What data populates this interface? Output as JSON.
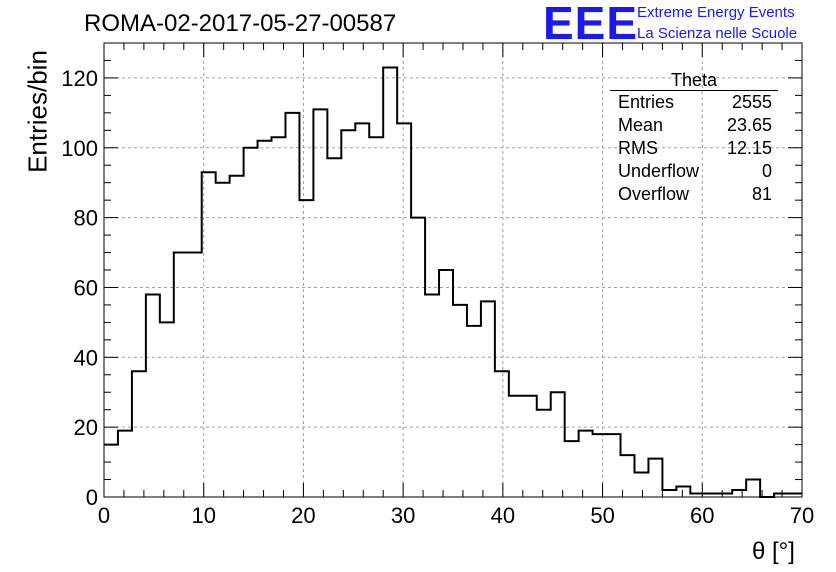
{
  "title": "ROMA-02-2017-05-27-00587",
  "logo": {
    "mark": "EEE",
    "line1": "Extreme Energy Events",
    "line2": "La Scienza nelle Scuole",
    "color": "#1a1aee"
  },
  "stats_box": {
    "title": "Theta",
    "rows": [
      {
        "label": "Entries",
        "value": "2555"
      },
      {
        "label": "Mean",
        "value": "23.65"
      },
      {
        "label": "RMS",
        "value": "12.15"
      },
      {
        "label": "Underflow",
        "value": "0"
      },
      {
        "label": "Overflow",
        "value": "81"
      }
    ]
  },
  "chart_data": {
    "type": "bar",
    "title": "ROMA-02-2017-05-27-00587",
    "xlabel": "θ [°]",
    "ylabel": "Entries/bin",
    "xlim": [
      0,
      70
    ],
    "ylim": [
      0,
      130
    ],
    "bin_width": 1.4,
    "bin_edges_start": 0,
    "values": [
      15,
      19,
      36,
      58,
      50,
      70,
      70,
      93,
      90,
      92,
      100,
      102,
      103,
      110,
      85,
      111,
      97,
      105,
      107,
      103,
      123,
      107,
      80,
      58,
      65,
      55,
      49,
      56,
      36,
      29,
      29,
      25,
      30,
      16,
      19,
      18,
      18,
      12,
      7,
      11,
      2,
      3,
      1,
      1,
      1,
      2,
      5,
      0,
      1,
      1
    ],
    "x_ticks": [
      "0",
      "10",
      "20",
      "30",
      "40",
      "50",
      "60",
      "70"
    ],
    "y_ticks": [
      "0",
      "20",
      "40",
      "60",
      "80",
      "100",
      "120"
    ],
    "grid": true,
    "line_color": "#000000",
    "grid_color": "#a0a0a0"
  }
}
